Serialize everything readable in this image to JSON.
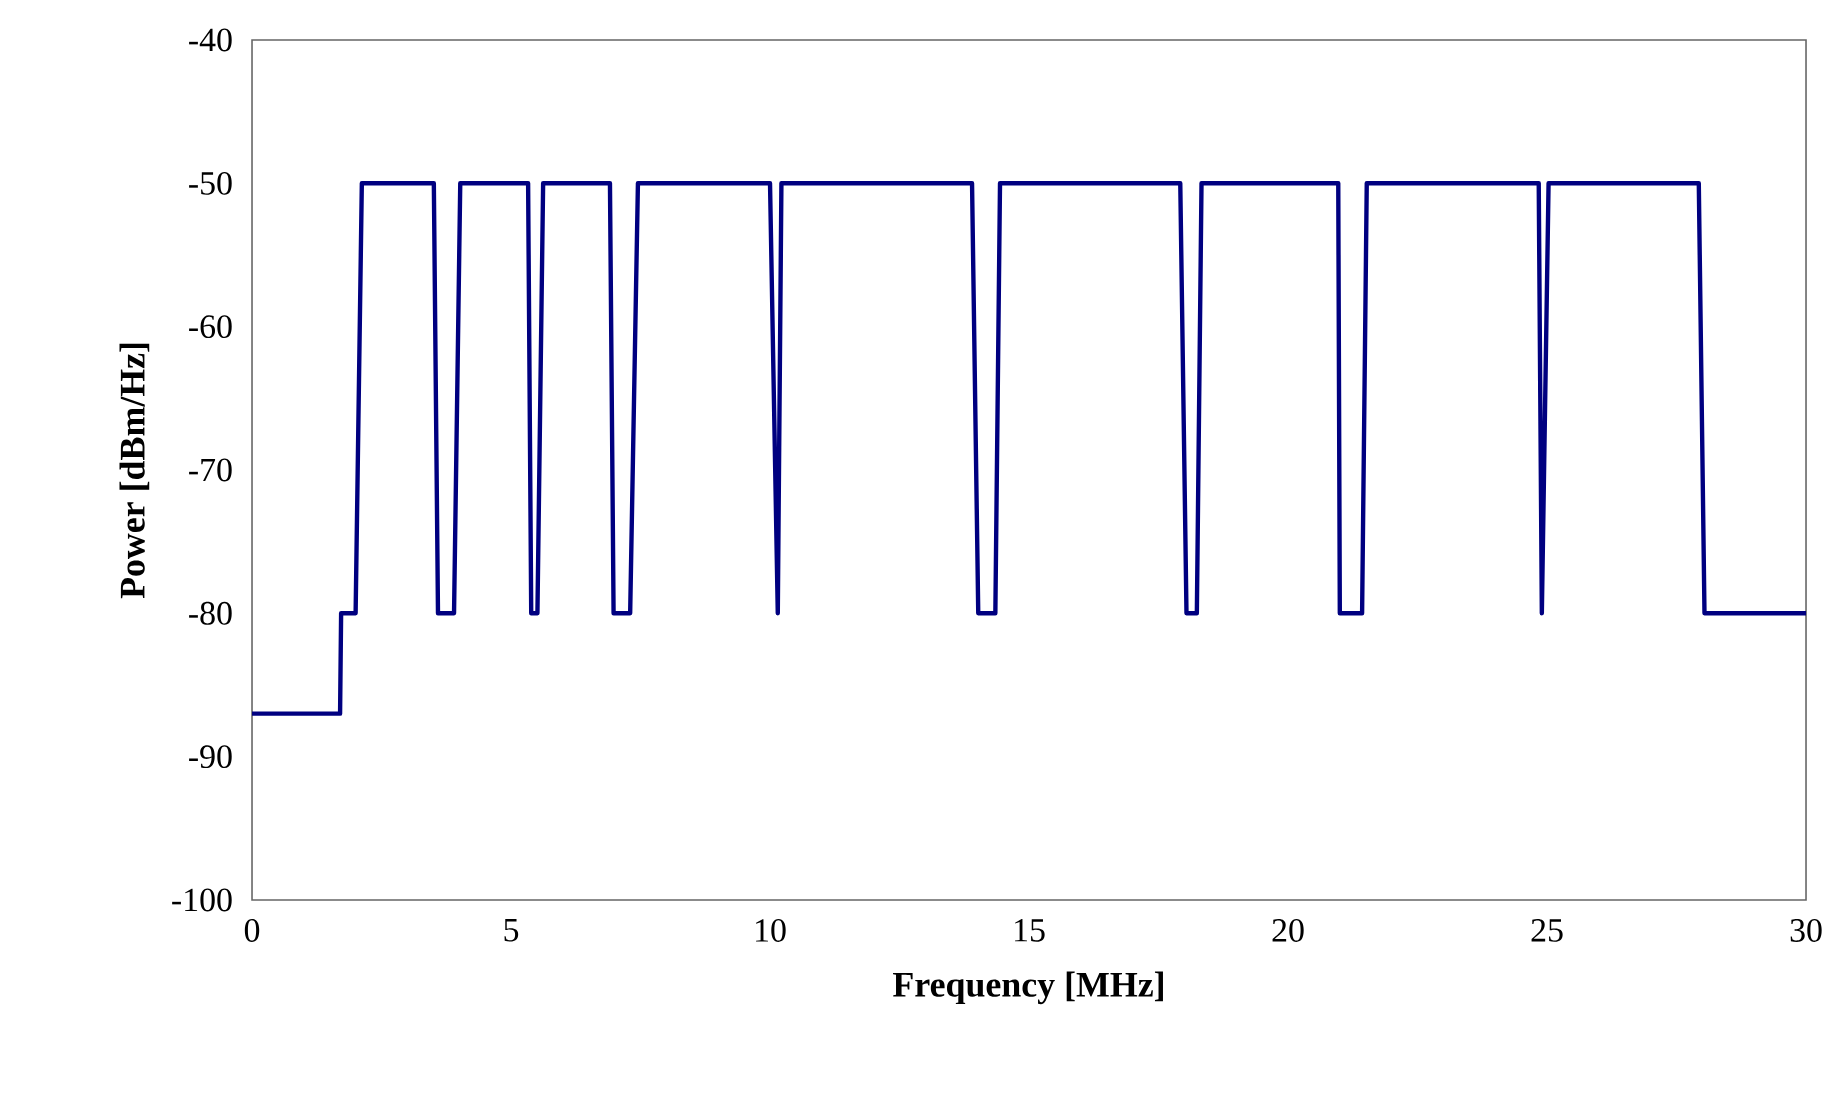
{
  "chart_data": {
    "type": "line",
    "xlabel": "Frequency [MHz]",
    "ylabel": "Power [dBm/Hz]",
    "xlim": [
      0,
      30
    ],
    "ylim": [
      -100,
      -40
    ],
    "xticks": [
      0,
      5,
      10,
      15,
      20,
      25,
      30
    ],
    "yticks": [
      -100,
      -90,
      -80,
      -70,
      -60,
      -50,
      -40
    ],
    "grid": false,
    "marker": "none",
    "line_style": "solid",
    "series": [
      {
        "color": "#000080",
        "x": [
          0,
          1.7,
          1.72,
          2.0,
          2.12,
          3.51,
          3.59,
          3.9,
          4.02,
          5.33,
          5.39,
          5.51,
          5.62,
          6.91,
          6.98,
          7.3,
          7.45,
          10.0,
          10.15,
          10.22,
          13.9,
          14.02,
          14.35,
          14.44,
          17.92,
          18.04,
          18.24,
          18.33,
          20.97,
          21.0,
          21.43,
          21.52,
          24.84,
          24.9,
          25.03,
          27.93,
          28.04,
          30
        ],
        "values": [
          -87,
          -87,
          -80,
          -80,
          -50,
          -50,
          -80,
          -80,
          -50,
          -50,
          -80,
          -80,
          -50,
          -50,
          -80,
          -80,
          -50,
          -50,
          -80,
          -50,
          -50,
          -80,
          -80,
          -50,
          -50,
          -80,
          -80,
          -50,
          -50,
          -80,
          -80,
          -50,
          -50,
          -80,
          -50,
          -50,
          -80,
          -80
        ]
      }
    ]
  }
}
